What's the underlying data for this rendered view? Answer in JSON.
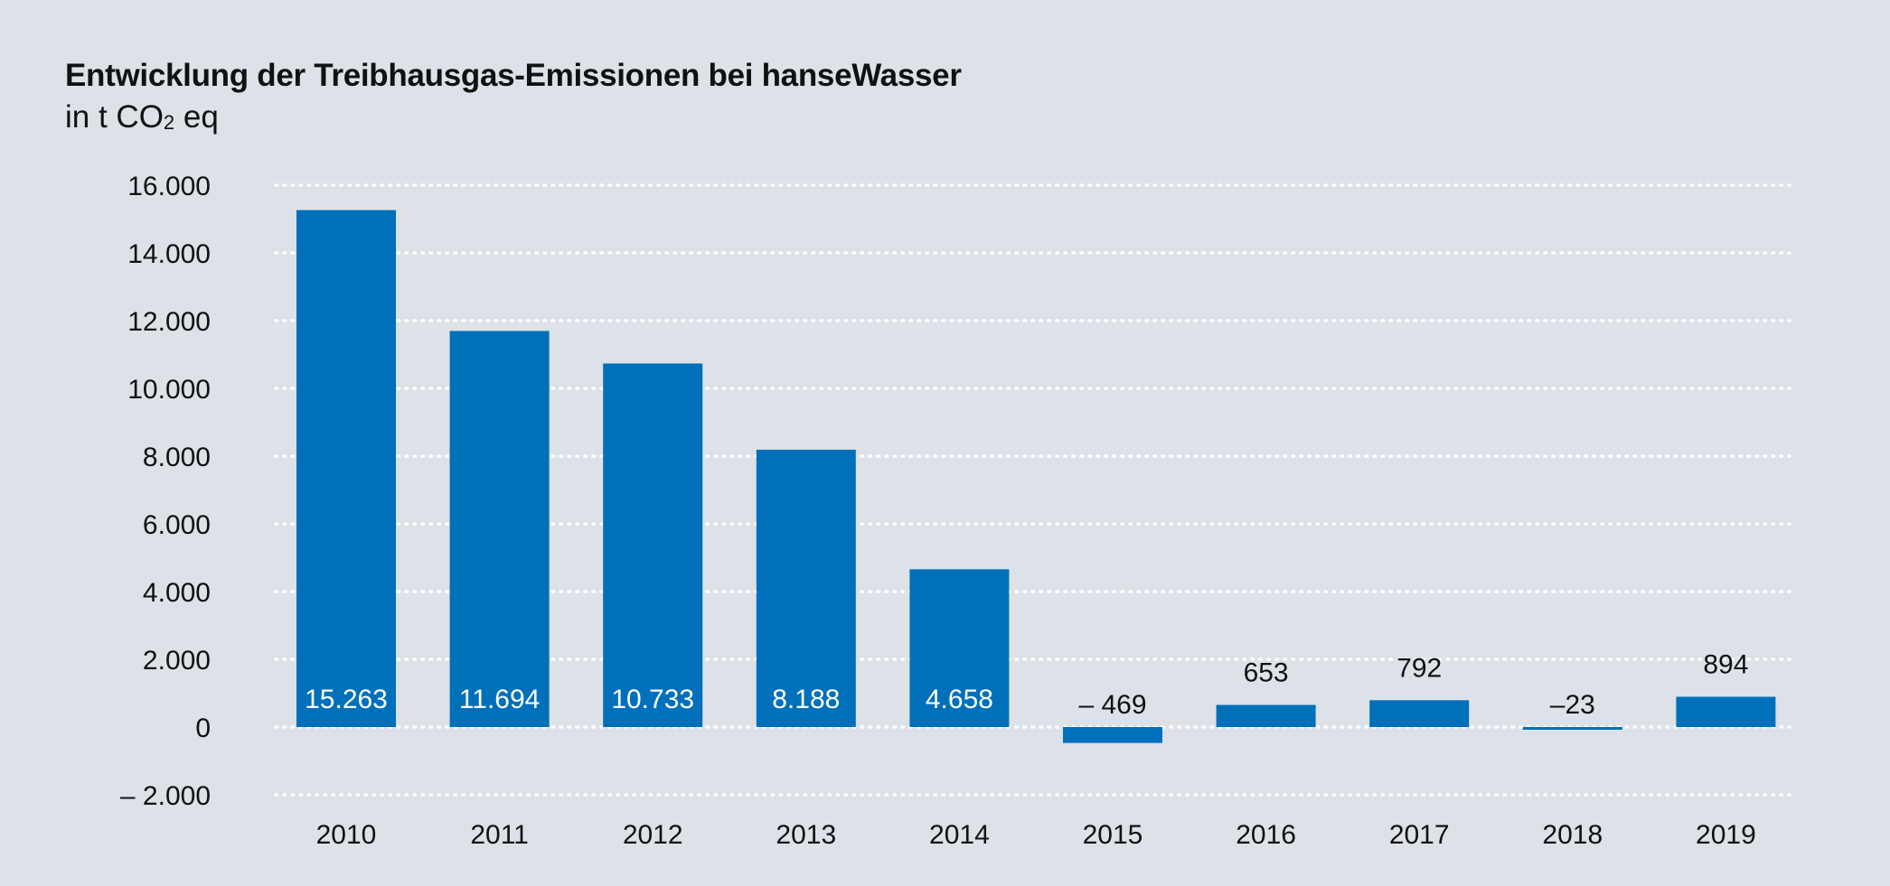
{
  "chart_data": {
    "type": "bar",
    "title": "Entwicklung der Treibhausgas-Emissionen bei hanseWasser",
    "subtitle": {
      "prefix": "in t CO",
      "subscript": "2",
      "suffix": " eq"
    },
    "categories": [
      "2010",
      "2011",
      "2012",
      "2013",
      "2014",
      "2015",
      "2016",
      "2017",
      "2018",
      "2019"
    ],
    "values": [
      15263,
      11694,
      10733,
      8188,
      4658,
      -469,
      653,
      792,
      -23,
      894
    ],
    "value_labels": [
      "15.263",
      "11.694",
      "10.733",
      "8.188",
      "4.658",
      "– 469",
      "653",
      "792",
      "–23",
      "894"
    ],
    "ylim": [
      -2000,
      16000
    ],
    "yticks": [
      16000,
      14000,
      12000,
      10000,
      8000,
      6000,
      4000,
      2000,
      0,
      -2000
    ],
    "ytick_labels": [
      "16.000",
      "14.000",
      "12.000",
      "10.000",
      "8.000",
      "6.000",
      "4.000",
      "2.000",
      "0",
      "– 2.000"
    ],
    "grid": true,
    "grid_style": "dotted",
    "colors": {
      "bar": "#0070bb",
      "background": "#dce2e7",
      "grid": "#ffffff",
      "label_inside": "#ffffff",
      "label_outside": "#111111"
    }
  }
}
